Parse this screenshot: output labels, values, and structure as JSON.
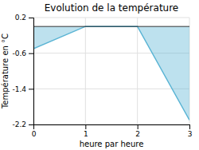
{
  "chart_data": {
    "type": "area",
    "title": "Evolution de la température",
    "x": [
      0,
      1,
      2,
      3
    ],
    "values": [
      -0.5,
      0.0,
      0.0,
      -2.1
    ],
    "color": "#5ab4d4",
    "xlim": [
      0,
      3
    ],
    "ylim": [
      -2.2,
      0.2
    ],
    "xticks": [
      0,
      1,
      2,
      3
    ],
    "yticks": [
      0.2,
      -0.6,
      -1.4,
      -2.2
    ],
    "xlabel": "heure par heure",
    "ylabel": "Température en °C",
    "grid": true
  }
}
